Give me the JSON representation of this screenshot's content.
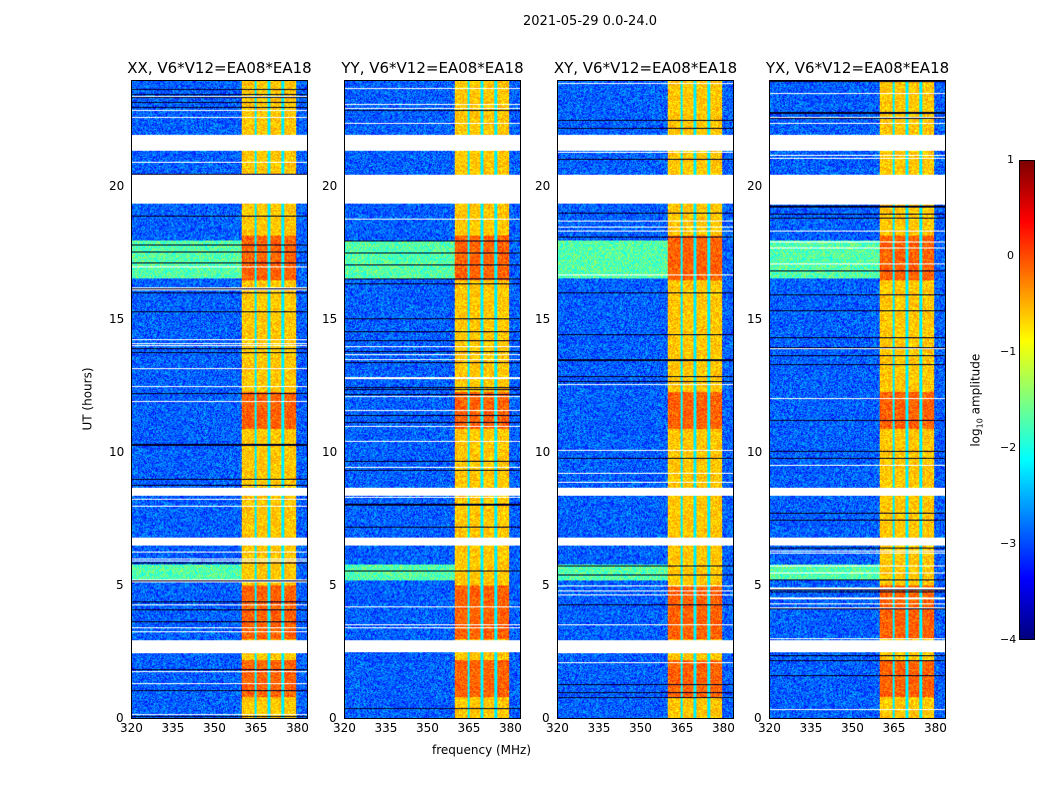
{
  "chart_data": {
    "type": "heatmap",
    "title": "2021-05-29 0.0-24.0",
    "xlabel": "frequency (MHz)",
    "ylabel": "UT (hours)",
    "panels": [
      {
        "title": "XX, V6*V12=EA08*EA18"
      },
      {
        "title": "YY, V6*V12=EA08*EA18"
      },
      {
        "title": "XY, V6*V12=EA08*EA18"
      },
      {
        "title": "YX, V6*V12=EA08*EA18"
      }
    ],
    "xlim": [
      320,
      384
    ],
    "ylim": [
      0,
      24
    ],
    "xticks": [
      "320",
      "335",
      "350",
      "365",
      "380"
    ],
    "yticks": [
      "0",
      "5",
      "10",
      "15",
      "20"
    ],
    "colorbar": {
      "label": "log10 amplitude",
      "range": [
        -4,
        1
      ],
      "ticks": [
        "1",
        "0",
        "−1",
        "−2",
        "−3",
        "−4"
      ],
      "colormap": "jet"
    },
    "background_log_amplitude": -2.9,
    "bright_band_mhz": [
      360,
      380
    ],
    "bright_band_log_amplitude": -0.6,
    "band_channel_edges_mhz": [
      365,
      370,
      375
    ],
    "flagged_ut_ranges_hours": [
      [
        21.4,
        22.0
      ],
      [
        19.4,
        20.5
      ],
      [
        8.4,
        8.7
      ],
      [
        6.5,
        6.8
      ],
      [
        2.5,
        2.95
      ]
    ],
    "strong_ut_ranges_hours": [
      [
        10.9,
        12.3
      ],
      [
        0.8,
        2.2
      ],
      [
        3.0,
        5.0
      ],
      [
        16.5,
        18.2
      ]
    ],
    "elevated_lowfreq_ut_ranges_hours": [
      [
        16.6,
        18.0
      ],
      [
        5.2,
        5.8
      ]
    ]
  }
}
